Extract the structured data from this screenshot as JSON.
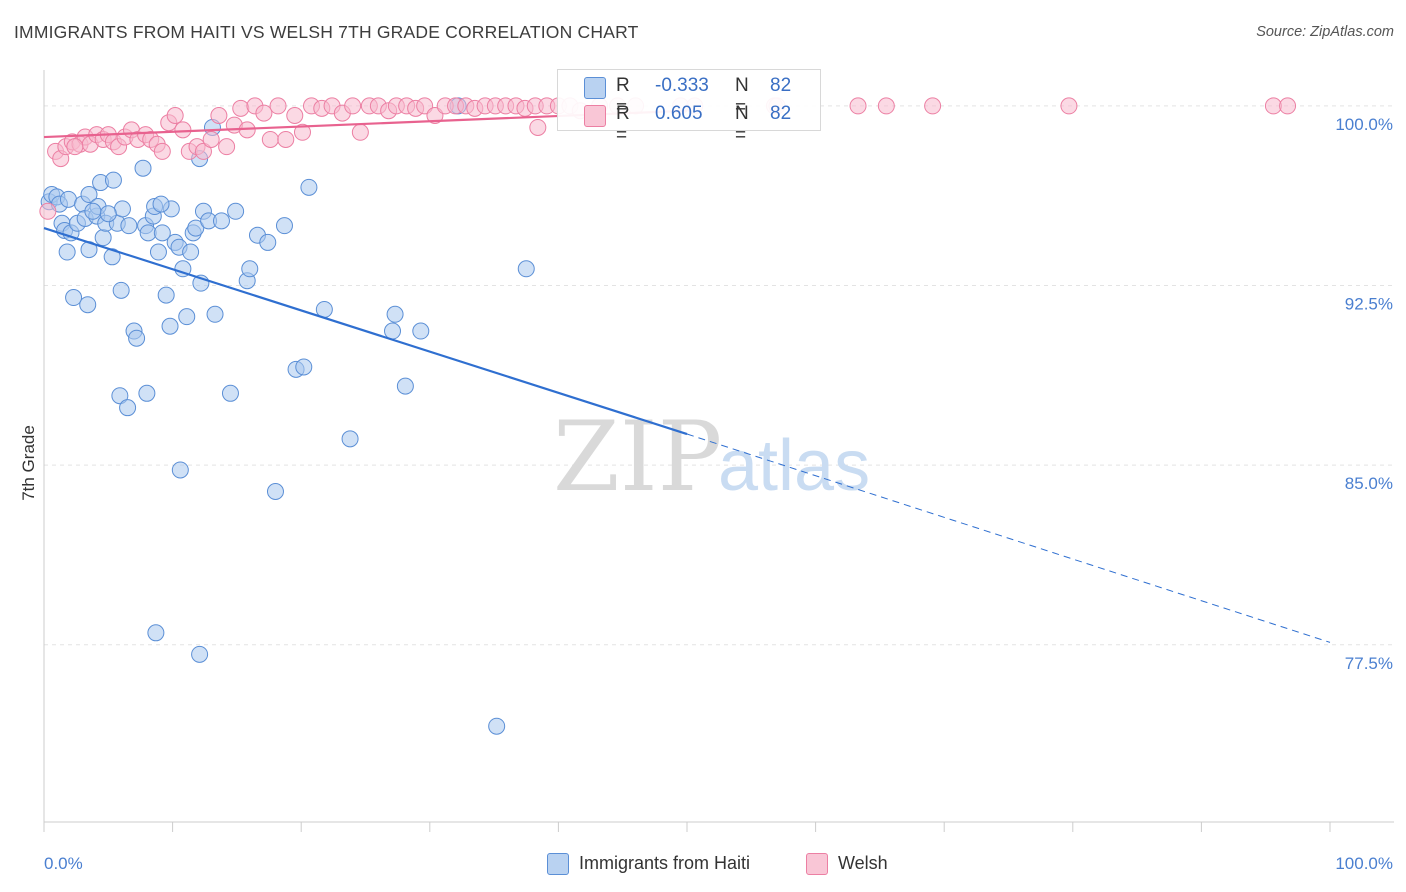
{
  "title": "IMMIGRANTS FROM HAITI VS WELSH 7TH GRADE CORRELATION CHART",
  "source": "Source: ZipAtlas.com",
  "watermark": {
    "zip": "ZIP",
    "atlas": "atlas"
  },
  "colors": {
    "haiti_fill": "#a9c8ef",
    "haiti_stroke": "#5b8fd6",
    "haiti_line": "#2f6fd0",
    "welsh_fill": "#f7b9cd",
    "welsh_stroke": "#ec7fa3",
    "welsh_line": "#e8628f",
    "tick_text": "#4a7fd0",
    "grid": "#e3e3e3"
  },
  "legend": {
    "haiti": {
      "r_label": "R =",
      "r_value": "-0.333",
      "n_label": "N =",
      "n_value": "82"
    },
    "welsh": {
      "r_label": "R =",
      "r_value": "0.605",
      "n_label": "N =",
      "n_value": "82"
    }
  },
  "bottom_legend": {
    "haiti": "Immigrants from Haiti",
    "welsh": "Welsh"
  },
  "chart_data": {
    "type": "scatter",
    "title": "IMMIGRANTS FROM HAITI VS WELSH 7TH GRADE CORRELATION CHART",
    "xlabel": "",
    "ylabel": "7th Grade",
    "xlim": [
      0,
      100
    ],
    "ylim": [
      70.1,
      101.5
    ],
    "x_tick_labels": [
      "0.0%",
      "100.0%"
    ],
    "y_ticks": [
      {
        "value": 100.0,
        "label": "100.0%"
      },
      {
        "value": 92.5,
        "label": "92.5%"
      },
      {
        "value": 85.0,
        "label": "85.0%"
      },
      {
        "value": 77.5,
        "label": "77.5%"
      }
    ],
    "x_minor_ticks": [
      0,
      10,
      20,
      30,
      40,
      50,
      60,
      70,
      80,
      90,
      100
    ],
    "series": [
      {
        "name": "Immigrants from Haiti",
        "key": "haiti",
        "trend": {
          "x0": 0,
          "y0": 94.9,
          "x1_solid": 50,
          "y1_solid": 86.3,
          "x1_dash": 100,
          "y1_dash": 77.6
        },
        "points": [
          [
            0.4,
            96.0
          ],
          [
            0.6,
            96.3
          ],
          [
            1.0,
            96.2
          ],
          [
            1.2,
            95.9
          ],
          [
            1.8,
            93.9
          ],
          [
            1.4,
            95.1
          ],
          [
            1.6,
            94.8
          ],
          [
            1.9,
            96.1
          ],
          [
            2.1,
            94.7
          ],
          [
            2.3,
            92.0
          ],
          [
            2.6,
            95.1
          ],
          [
            3.0,
            95.9
          ],
          [
            3.2,
            95.3
          ],
          [
            3.5,
            96.3
          ],
          [
            3.4,
            91.7
          ],
          [
            3.5,
            94.0
          ],
          [
            4.1,
            95.4
          ],
          [
            4.2,
            95.8
          ],
          [
            4.4,
            96.8
          ],
          [
            4.6,
            94.5
          ],
          [
            4.8,
            95.1
          ],
          [
            5.3,
            93.7
          ],
          [
            5.4,
            96.9
          ],
          [
            5.7,
            95.1
          ],
          [
            6.1,
            95.7
          ],
          [
            5.9,
            87.9
          ],
          [
            6.0,
            92.3
          ],
          [
            6.5,
            87.4
          ],
          [
            6.6,
            95.0
          ],
          [
            7.0,
            90.6
          ],
          [
            7.2,
            90.3
          ],
          [
            7.7,
            97.4
          ],
          [
            7.9,
            95.0
          ],
          [
            8.0,
            88.0
          ],
          [
            8.1,
            94.7
          ],
          [
            8.5,
            95.4
          ],
          [
            8.6,
            95.8
          ],
          [
            8.9,
            93.9
          ],
          [
            9.2,
            94.7
          ],
          [
            9.5,
            92.1
          ],
          [
            9.8,
            90.8
          ],
          [
            9.9,
            95.7
          ],
          [
            10.2,
            94.3
          ],
          [
            10.5,
            94.1
          ],
          [
            10.6,
            84.8
          ],
          [
            10.8,
            93.2
          ],
          [
            11.1,
            91.2
          ],
          [
            11.4,
            93.9
          ],
          [
            11.6,
            94.7
          ],
          [
            11.8,
            94.9
          ],
          [
            12.1,
            97.8
          ],
          [
            12.2,
            92.6
          ],
          [
            12.4,
            95.6
          ],
          [
            12.8,
            95.2
          ],
          [
            13.1,
            99.1
          ],
          [
            13.3,
            91.3
          ],
          [
            13.8,
            95.2
          ],
          [
            14.5,
            88.0
          ],
          [
            14.9,
            95.6
          ],
          [
            15.8,
            92.7
          ],
          [
            16.0,
            93.2
          ],
          [
            16.6,
            94.6
          ],
          [
            17.4,
            94.3
          ],
          [
            18.0,
            83.9
          ],
          [
            18.7,
            95.0
          ],
          [
            19.6,
            89.0
          ],
          [
            20.2,
            89.1
          ],
          [
            20.6,
            96.6
          ],
          [
            21.8,
            91.5
          ],
          [
            23.8,
            86.1
          ],
          [
            27.1,
            90.6
          ],
          [
            27.3,
            91.3
          ],
          [
            28.1,
            88.3
          ],
          [
            29.3,
            90.6
          ],
          [
            8.7,
            78.0
          ],
          [
            12.1,
            77.1
          ],
          [
            35.2,
            74.1
          ],
          [
            37.5,
            93.2
          ],
          [
            32.2,
            100.0
          ],
          [
            5.0,
            95.5
          ],
          [
            9.1,
            95.9
          ],
          [
            3.8,
            95.6
          ]
        ]
      },
      {
        "name": "Welsh",
        "key": "welsh",
        "trend": {
          "x0": 0,
          "y0": 98.7,
          "x1": 50,
          "y1": 99.8
        },
        "points": [
          [
            0.3,
            95.6
          ],
          [
            0.9,
            98.1
          ],
          [
            1.3,
            97.8
          ],
          [
            1.7,
            98.3
          ],
          [
            2.2,
            98.5
          ],
          [
            2.8,
            98.4
          ],
          [
            3.2,
            98.7
          ],
          [
            3.6,
            98.4
          ],
          [
            4.1,
            98.8
          ],
          [
            4.6,
            98.6
          ],
          [
            5.0,
            98.8
          ],
          [
            5.4,
            98.5
          ],
          [
            5.8,
            98.3
          ],
          [
            6.3,
            98.7
          ],
          [
            6.8,
            99.0
          ],
          [
            7.3,
            98.6
          ],
          [
            7.9,
            98.8
          ],
          [
            8.3,
            98.6
          ],
          [
            8.8,
            98.4
          ],
          [
            9.2,
            98.1
          ],
          [
            9.7,
            99.3
          ],
          [
            10.2,
            99.6
          ],
          [
            10.8,
            99.0
          ],
          [
            11.3,
            98.1
          ],
          [
            11.9,
            98.3
          ],
          [
            12.4,
            98.1
          ],
          [
            13.0,
            98.6
          ],
          [
            13.6,
            99.6
          ],
          [
            14.2,
            98.3
          ],
          [
            14.8,
            99.2
          ],
          [
            15.3,
            99.9
          ],
          [
            15.8,
            99.0
          ],
          [
            16.4,
            100.0
          ],
          [
            17.1,
            99.7
          ],
          [
            17.6,
            98.6
          ],
          [
            18.2,
            100.0
          ],
          [
            18.8,
            98.6
          ],
          [
            19.5,
            99.6
          ],
          [
            20.1,
            98.9
          ],
          [
            20.8,
            100.0
          ],
          [
            21.6,
            99.9
          ],
          [
            22.4,
            100.0
          ],
          [
            23.2,
            99.7
          ],
          [
            24.0,
            100.0
          ],
          [
            24.6,
            98.9
          ],
          [
            25.3,
            100.0
          ],
          [
            26.0,
            100.0
          ],
          [
            26.8,
            99.8
          ],
          [
            27.4,
            100.0
          ],
          [
            28.2,
            100.0
          ],
          [
            28.9,
            99.9
          ],
          [
            29.6,
            100.0
          ],
          [
            30.4,
            99.6
          ],
          [
            31.2,
            100.0
          ],
          [
            32.0,
            100.0
          ],
          [
            32.8,
            100.0
          ],
          [
            33.5,
            99.9
          ],
          [
            34.3,
            100.0
          ],
          [
            35.1,
            100.0
          ],
          [
            35.9,
            100.0
          ],
          [
            36.7,
            100.0
          ],
          [
            37.4,
            99.9
          ],
          [
            38.2,
            100.0
          ],
          [
            39.1,
            100.0
          ],
          [
            40.0,
            100.0
          ],
          [
            40.9,
            100.0
          ],
          [
            41.7,
            99.8
          ],
          [
            43.2,
            100.0
          ],
          [
            44.6,
            100.0
          ],
          [
            46.0,
            100.0
          ],
          [
            49.5,
            100.0
          ],
          [
            50.6,
            100.0
          ],
          [
            56.8,
            100.0
          ],
          [
            57.0,
            100.0
          ],
          [
            63.3,
            100.0
          ],
          [
            65.5,
            100.0
          ],
          [
            69.1,
            100.0
          ],
          [
            79.7,
            100.0
          ],
          [
            95.6,
            100.0
          ],
          [
            96.7,
            100.0
          ],
          [
            38.4,
            99.1
          ],
          [
            2.4,
            98.3
          ]
        ]
      }
    ]
  }
}
